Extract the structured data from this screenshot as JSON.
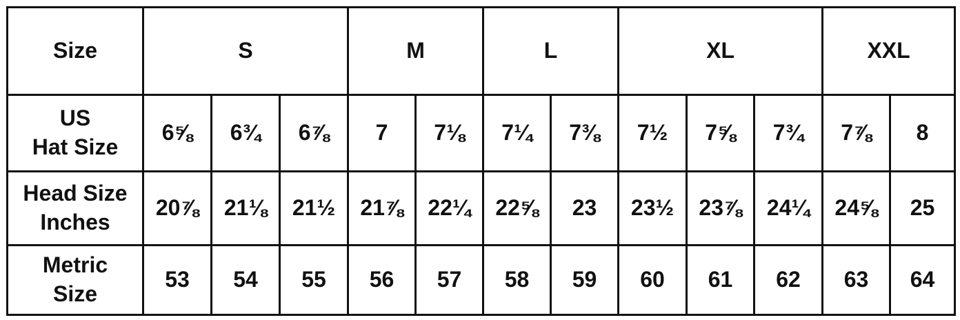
{
  "table": {
    "header": {
      "label": "Size",
      "groups": [
        {
          "label": "S",
          "span": 3
        },
        {
          "label": "M",
          "span": 2
        },
        {
          "label": "L",
          "span": 2
        },
        {
          "label": "XL",
          "span": 3
        },
        {
          "label": "XXL",
          "span": 2
        }
      ]
    },
    "rows": [
      {
        "label": "US\nHat Size",
        "values": [
          "6⅝",
          "6¾",
          "6⅞",
          "7",
          "7⅛",
          "7¼",
          "7⅜",
          "7½",
          "7⅝",
          "7¾",
          "7⅞",
          "8"
        ]
      },
      {
        "label": "Head Size\nInches",
        "values": [
          "20⅞",
          "21⅛",
          "21½",
          "21⅞",
          "22¼",
          "22⅝",
          "23",
          "23½",
          "23⅞",
          "24¼",
          "24⅝",
          "25"
        ]
      },
      {
        "label": "Metric\nSize",
        "values": [
          "53",
          "54",
          "55",
          "56",
          "57",
          "58",
          "59",
          "60",
          "61",
          "62",
          "63",
          "64"
        ]
      }
    ]
  }
}
